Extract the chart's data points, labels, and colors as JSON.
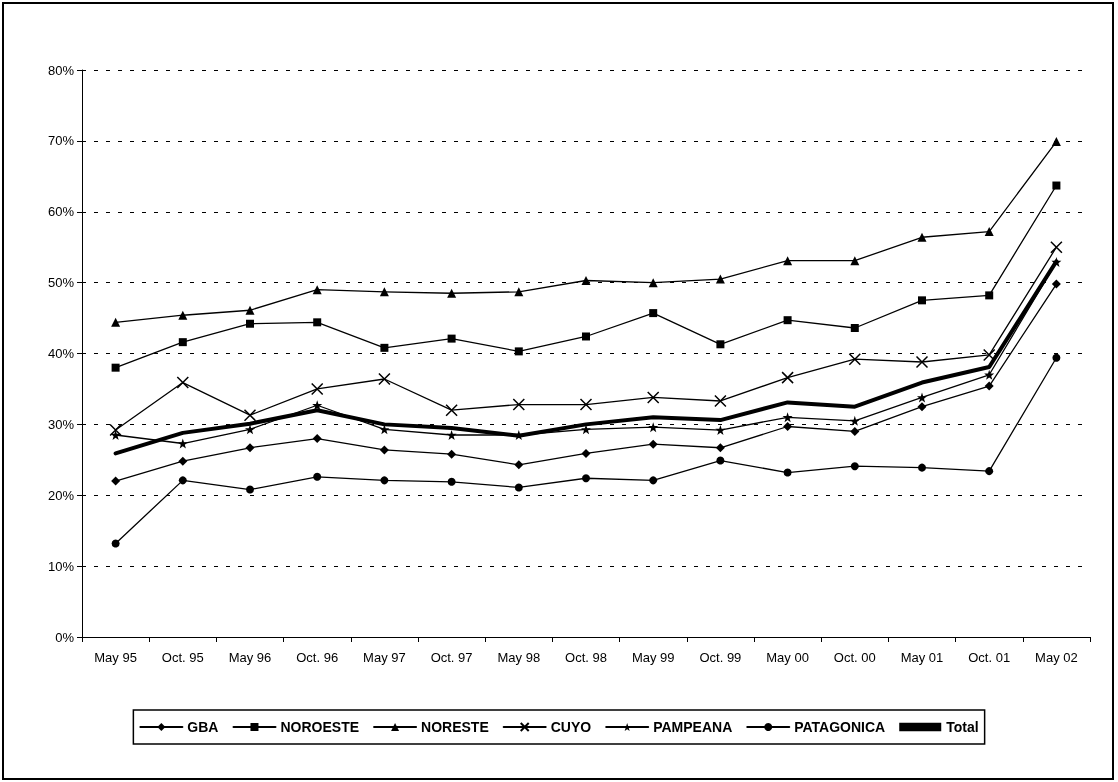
{
  "chart_data": {
    "type": "line",
    "categories": [
      "May 95",
      "Oct. 95",
      "May 96",
      "Oct. 96",
      "May 97",
      "Oct. 97",
      "May 98",
      "Oct. 98",
      "May 99",
      "Oct. 99",
      "May 00",
      "Oct. 00",
      "May 01",
      "Oct. 01",
      "May 02"
    ],
    "series": [
      {
        "name": "GBA",
        "color": "#000000",
        "marker": "diamond",
        "values": [
          22,
          24.8,
          26.7,
          28,
          26.4,
          25.8,
          24.3,
          25.9,
          27.2,
          26.7,
          29.7,
          29,
          32.5,
          35.4,
          49.8
        ]
      },
      {
        "name": "NOROESTE",
        "color": "#000000",
        "marker": "square",
        "values": [
          38,
          41.6,
          44.2,
          44.4,
          40.8,
          42.1,
          40.3,
          42.4,
          45.7,
          41.3,
          44.7,
          43.6,
          47.5,
          48.2,
          63.7
        ]
      },
      {
        "name": "NORESTE",
        "color": "#000000",
        "marker": "triangle",
        "values": [
          44.4,
          45.4,
          46.1,
          49,
          48.7,
          48.5,
          48.7,
          50.3,
          50,
          50.5,
          53.1,
          53.1,
          56.4,
          57.2,
          69.9
        ]
      },
      {
        "name": "CUYO",
        "color": "#000000",
        "marker": "cross",
        "values": [
          29.2,
          35.9,
          31.3,
          35,
          36.4,
          32,
          32.8,
          32.8,
          33.8,
          33.3,
          36.6,
          39.2,
          38.8,
          39.8,
          55
        ]
      },
      {
        "name": "PAMPEANA",
        "color": "#000000",
        "marker": "star",
        "values": [
          28.5,
          27.3,
          29.3,
          32.7,
          29.3,
          28.5,
          28.5,
          29.3,
          29.6,
          29.2,
          31,
          30.5,
          33.8,
          37,
          52.9
        ]
      },
      {
        "name": "PATAGONICA",
        "color": "#000000",
        "marker": "circle",
        "values": [
          13.2,
          22.1,
          20.8,
          22.6,
          22.1,
          21.9,
          21.1,
          22.4,
          22.1,
          24.9,
          23.2,
          24.1,
          23.9,
          23.4,
          39.4
        ]
      },
      {
        "name": "Total",
        "color": "#000000",
        "marker": "none",
        "values": [
          25.9,
          28.8,
          30.1,
          32,
          30,
          29.5,
          28.4,
          30,
          31,
          30.6,
          33.1,
          32.5,
          35.9,
          38.1,
          53
        ]
      }
    ],
    "ylim": [
      0,
      80
    ],
    "yticks": [
      {
        "value": 0,
        "label": "0%"
      },
      {
        "value": 10,
        "label": "10%"
      },
      {
        "value": 20,
        "label": "20%"
      },
      {
        "value": 30,
        "label": "30%"
      },
      {
        "value": 40,
        "label": "40%"
      },
      {
        "value": 50,
        "label": "50%"
      },
      {
        "value": 60,
        "label": "60%"
      },
      {
        "value": 70,
        "label": "70%"
      },
      {
        "value": 80,
        "label": "80%"
      }
    ],
    "grid": "y",
    "legend": "bottom",
    "line_style": "solid"
  }
}
